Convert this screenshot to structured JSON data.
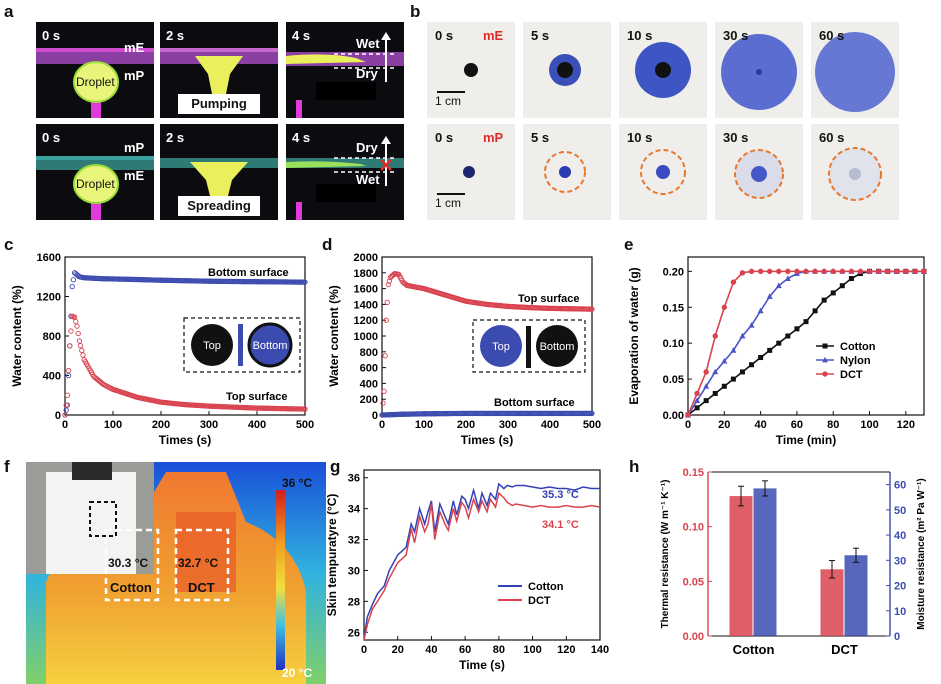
{
  "panels": {
    "a": "a",
    "b": "b",
    "c": "c",
    "d": "d",
    "e": "e",
    "f": "f",
    "g": "g",
    "h": "h"
  },
  "panel_a": {
    "top_row": {
      "times": [
        "0 s",
        "2 s",
        "4 s"
      ],
      "layer_top": "mE",
      "layer_bottom": "mP",
      "droplet": "Droplet",
      "action": "Pumping",
      "wet": "Wet",
      "dry": "Dry"
    },
    "bottom_row": {
      "times": [
        "0 s",
        "2 s",
        "4 s"
      ],
      "layer_top": "mP",
      "layer_bottom": "mE",
      "droplet": "Droplet",
      "action": "Spreading",
      "wet": "Wet",
      "dry": "Dry"
    }
  },
  "panel_b": {
    "top_row": {
      "times": [
        "0 s",
        "5 s",
        "10 s",
        "30 s",
        "60 s"
      ],
      "label": "mE",
      "scale": "1 cm"
    },
    "bottom_row": {
      "times": [
        "0 s",
        "5 s",
        "10 s",
        "30 s",
        "60 s"
      ],
      "label": "mP",
      "scale": "1 cm"
    }
  },
  "panel_f": {
    "scale_max": "36 °C",
    "scale_min": "20 °C",
    "cotton_temp": "30.3 °C",
    "dct_temp": "32.7 °C",
    "cotton": "Cotton",
    "dct": "DCT"
  },
  "colors": {
    "blue": "#3b4bb0",
    "red": "#d9434f",
    "orange": "#e8772e",
    "black": "#111111"
  },
  "chart_data": [
    {
      "id": "c",
      "type": "scatter",
      "xlabel": "Times (s)",
      "ylabel": "Water content (%)",
      "xlim": [
        0,
        500
      ],
      "ylim": [
        0,
        1600
      ],
      "xticks": [
        0,
        100,
        200,
        300,
        400,
        500
      ],
      "yticks": [
        0,
        400,
        800,
        1200,
        1600
      ],
      "series": [
        {
          "name": "Bottom surface",
          "color": "#3b4bb0",
          "x": [
            0,
            5,
            10,
            15,
            20,
            25,
            30,
            40,
            60,
            80,
            100,
            150,
            200,
            250,
            300,
            350,
            400,
            450,
            500
          ],
          "y": [
            0,
            100,
            700,
            1300,
            1440,
            1420,
            1400,
            1390,
            1385,
            1380,
            1378,
            1372,
            1365,
            1360,
            1355,
            1352,
            1350,
            1348,
            1345
          ]
        },
        {
          "name": "Top surface",
          "color": "#d9434f",
          "x": [
            0,
            5,
            10,
            15,
            20,
            25,
            30,
            40,
            60,
            80,
            100,
            150,
            200,
            250,
            300,
            350,
            400,
            450,
            500
          ],
          "y": [
            0,
            200,
            700,
            1000,
            990,
            900,
            750,
            560,
            390,
            310,
            260,
            180,
            130,
            105,
            90,
            80,
            70,
            65,
            60
          ]
        }
      ],
      "annotations": [
        "Bottom surface",
        "Top surface"
      ],
      "inset": [
        "Top",
        "Bottom"
      ]
    },
    {
      "id": "d",
      "type": "scatter",
      "xlabel": "Times (s)",
      "ylabel": "Water content (%)",
      "xlim": [
        0,
        500
      ],
      "ylim": [
        0,
        2000
      ],
      "xticks": [
        0,
        100,
        200,
        300,
        400,
        500
      ],
      "yticks": [
        0,
        200,
        400,
        600,
        800,
        1000,
        1200,
        1400,
        1600,
        1800,
        2000
      ],
      "series": [
        {
          "name": "Top surface",
          "color": "#d9434f",
          "x": [
            0,
            5,
            10,
            15,
            20,
            30,
            40,
            50,
            60,
            80,
            100,
            150,
            200,
            250,
            300,
            350,
            400,
            450,
            500
          ],
          "y": [
            0,
            300,
            1200,
            1650,
            1740,
            1790,
            1780,
            1680,
            1640,
            1620,
            1600,
            1520,
            1440,
            1400,
            1375,
            1360,
            1350,
            1345,
            1340
          ]
        },
        {
          "name": "Bottom surface",
          "color": "#3b4bb0",
          "x": [
            0,
            50,
            100,
            150,
            200,
            250,
            300,
            350,
            400,
            450,
            500
          ],
          "y": [
            0,
            10,
            15,
            18,
            20,
            20,
            20,
            20,
            20,
            20,
            20
          ]
        }
      ],
      "annotations": [
        "Top surface",
        "Bottom surface"
      ],
      "inset": [
        "Top",
        "Bottom"
      ]
    },
    {
      "id": "e",
      "type": "line",
      "xlabel": "Time (min)",
      "ylabel": "Evaporation of water (g)",
      "xlim": [
        0,
        130
      ],
      "ylim": [
        0,
        0.22
      ],
      "xticks": [
        0,
        20,
        40,
        60,
        80,
        100,
        120
      ],
      "yticks": [
        0.0,
        0.05,
        0.1,
        0.15,
        0.2
      ],
      "series": [
        {
          "name": "Cotton",
          "color": "#111111",
          "marker": "square",
          "x": [
            0,
            5,
            10,
            15,
            20,
            25,
            30,
            35,
            40,
            45,
            50,
            55,
            60,
            65,
            70,
            75,
            80,
            85,
            90,
            95,
            100,
            105,
            110,
            115,
            120,
            125,
            130
          ],
          "y": [
            0,
            0.01,
            0.02,
            0.03,
            0.04,
            0.05,
            0.06,
            0.07,
            0.08,
            0.09,
            0.1,
            0.11,
            0.12,
            0.13,
            0.145,
            0.16,
            0.17,
            0.18,
            0.19,
            0.197,
            0.2,
            0.2,
            0.2,
            0.2,
            0.2,
            0.2,
            0.2
          ]
        },
        {
          "name": "Nylon",
          "color": "#4b55c8",
          "marker": "triangle",
          "x": [
            0,
            5,
            10,
            15,
            20,
            25,
            30,
            35,
            40,
            45,
            50,
            55,
            60,
            65,
            70,
            75,
            80,
            85,
            90,
            95,
            100,
            105,
            110,
            115,
            120,
            125,
            130
          ],
          "y": [
            0,
            0.02,
            0.04,
            0.06,
            0.075,
            0.09,
            0.11,
            0.125,
            0.145,
            0.165,
            0.18,
            0.19,
            0.197,
            0.2,
            0.2,
            0.2,
            0.2,
            0.2,
            0.2,
            0.2,
            0.2,
            0.2,
            0.2,
            0.2,
            0.2,
            0.2,
            0.2
          ]
        },
        {
          "name": "DCT",
          "color": "#d9434f",
          "marker": "circle",
          "x": [
            0,
            5,
            10,
            15,
            20,
            25,
            30,
            35,
            40,
            45,
            50,
            55,
            60,
            65,
            70,
            75,
            80,
            85,
            90,
            95,
            100,
            105,
            110,
            115,
            120,
            125,
            130
          ],
          "y": [
            0,
            0.03,
            0.06,
            0.11,
            0.15,
            0.185,
            0.198,
            0.2,
            0.2,
            0.2,
            0.2,
            0.2,
            0.2,
            0.2,
            0.2,
            0.2,
            0.2,
            0.2,
            0.2,
            0.2,
            0.2,
            0.2,
            0.2,
            0.2,
            0.2,
            0.2,
            0.2
          ]
        }
      ],
      "legend": [
        "Cotton",
        "Nylon",
        "DCT"
      ]
    },
    {
      "id": "g",
      "type": "line",
      "xlabel": "Time (s)",
      "ylabel": "Skin tempuratyre (°C)",
      "xlim": [
        0,
        140
      ],
      "ylim": [
        25.5,
        36.5
      ],
      "xticks": [
        0,
        20,
        40,
        60,
        80,
        100,
        120,
        140
      ],
      "yticks": [
        26,
        28,
        30,
        32,
        34,
        36
      ],
      "series": [
        {
          "name": "Cotton",
          "color": "#3341b5",
          "x": [
            0,
            2,
            5,
            8,
            12,
            15,
            20,
            25,
            28,
            30,
            33,
            36,
            38,
            40,
            42,
            45,
            48,
            50,
            53,
            55,
            58,
            60,
            62,
            65,
            68,
            70,
            73,
            75,
            78,
            80,
            83,
            85,
            88,
            90,
            95,
            100,
            105,
            110,
            115,
            120,
            125,
            130,
            135,
            140
          ],
          "y": [
            25.6,
            27,
            27.8,
            28.5,
            29,
            30,
            31,
            31.5,
            33,
            32.5,
            34,
            33,
            33.8,
            34.5,
            32.5,
            34.3,
            33.5,
            33,
            34.5,
            33.6,
            34.8,
            34.6,
            34,
            35.2,
            34,
            35,
            34.2,
            35,
            34.6,
            35.6,
            35.3,
            35.5,
            35.4,
            35.5,
            35.5,
            35.4,
            35.3,
            35.4,
            35.3,
            35.3,
            35.2,
            35.4,
            35.3,
            35.3
          ]
        },
        {
          "name": "DCT",
          "color": "#d9434f",
          "x": [
            0,
            2,
            5,
            8,
            12,
            15,
            20,
            25,
            28,
            30,
            33,
            36,
            38,
            40,
            42,
            45,
            48,
            50,
            53,
            55,
            58,
            60,
            62,
            65,
            68,
            70,
            73,
            75,
            78,
            80,
            83,
            85,
            88,
            90,
            95,
            100,
            105,
            110,
            115,
            120,
            125,
            130,
            135,
            140
          ],
          "y": [
            25.5,
            26.5,
            27.5,
            28,
            28.7,
            29.5,
            30.5,
            31,
            32.7,
            31.8,
            33.5,
            32.5,
            33,
            34.3,
            32,
            33.8,
            33,
            32.6,
            34,
            33.2,
            34.4,
            34.1,
            33.4,
            34.6,
            33.8,
            34.5,
            33.8,
            34.6,
            34.1,
            35,
            34.7,
            34.4,
            34.2,
            34.3,
            34.2,
            34.1,
            34.2,
            34.1,
            34.1,
            34.2,
            34.1,
            34.1,
            34.2,
            34.1
          ]
        }
      ],
      "annotations": [
        "35.3 °C",
        "34.1 °C"
      ],
      "legend": [
        "Cotton",
        "DCT"
      ]
    },
    {
      "id": "h",
      "type": "bar",
      "categories": [
        "Cotton",
        "DCT"
      ],
      "ylabel_left": "Thermal resistance (W m⁻¹ K⁻¹)",
      "ylabel_right": "Moisture resistance (m² Pa W⁻¹)",
      "ylim_left": [
        0,
        0.15
      ],
      "ylim_right": [
        0,
        65
      ],
      "yticks_left": [
        0.0,
        0.05,
        0.1,
        0.15
      ],
      "yticks_right": [
        0,
        10,
        20,
        30,
        40,
        50,
        60
      ],
      "series": [
        {
          "name": "Thermal resistance",
          "axis": "left",
          "color": "#d9434f",
          "values": [
            0.128,
            0.061
          ],
          "errors": [
            0.009,
            0.008
          ]
        },
        {
          "name": "Moisture resistance",
          "axis": "right",
          "color": "#3b4bb0",
          "values": [
            58.5,
            32.0
          ],
          "errors": [
            3.0,
            2.8
          ]
        }
      ]
    }
  ]
}
